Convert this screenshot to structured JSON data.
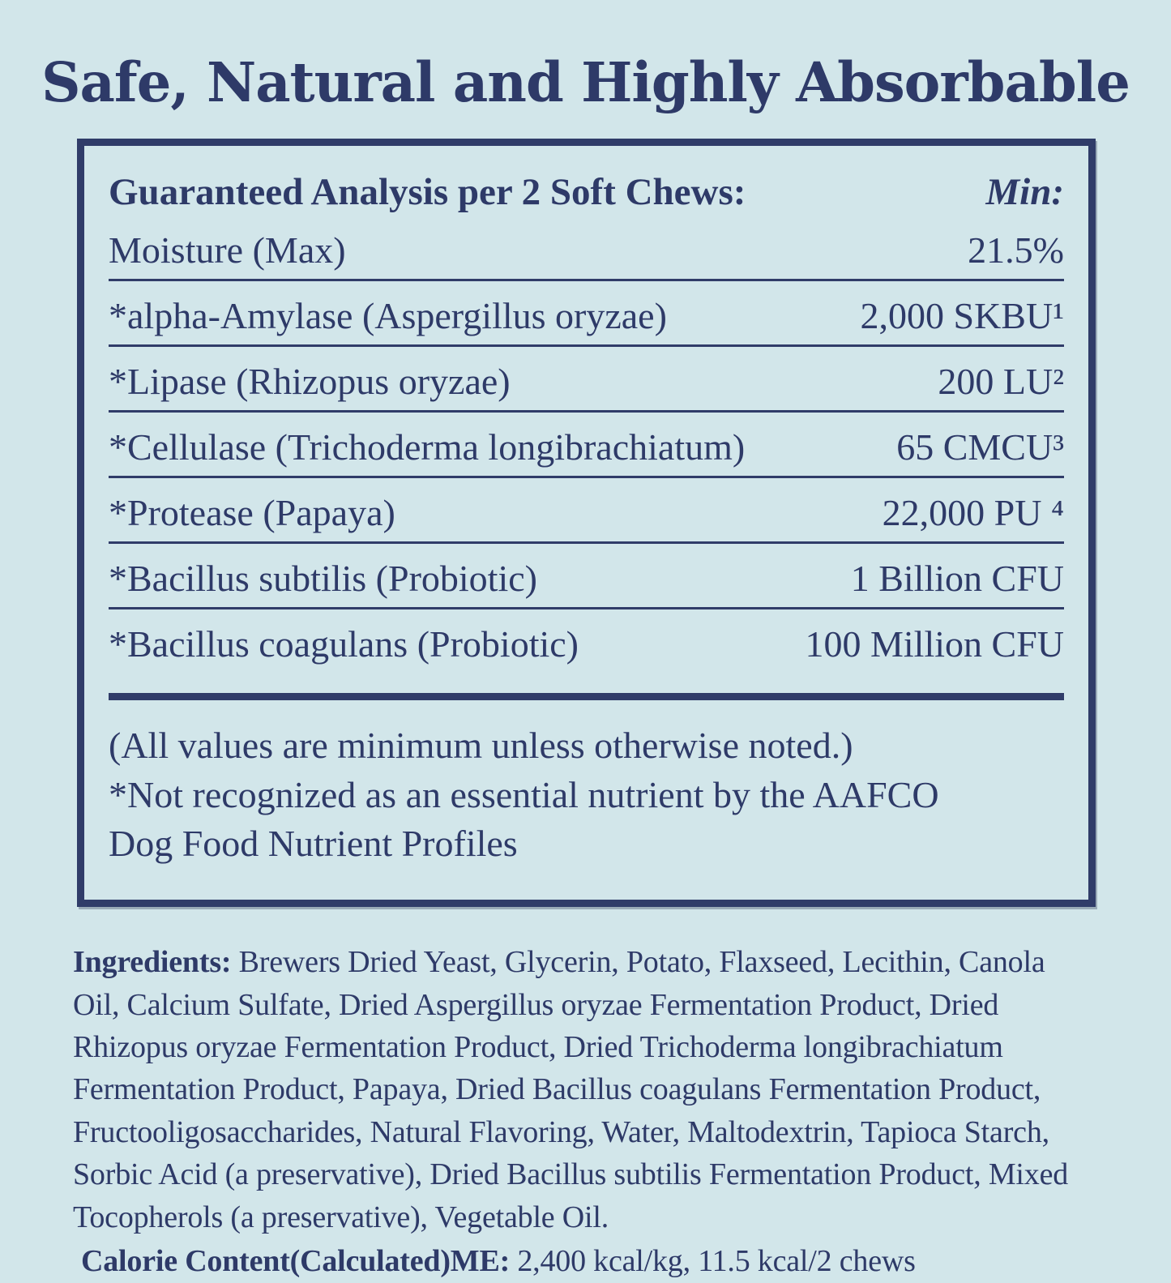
{
  "page": {
    "title": "Safe, Natural and Highly Absorbable"
  },
  "analysis_box": {
    "header": {
      "label": "Guaranteed Analysis per 2 Soft Chews:",
      "min_label": "Min:"
    },
    "rows": [
      {
        "name": "Moisture (Max)",
        "value": "21.5%"
      },
      {
        "name": "*alpha-Amylase (Aspergillus oryzae)",
        "value": "2,000 SKBU¹"
      },
      {
        "name": "*Lipase (Rhizopus oryzae)",
        "value": "200 LU²"
      },
      {
        "name": "*Cellulase (Trichoderma longibrachiatum)",
        "value": "65 CMCU³"
      },
      {
        "name": "*Protease (Papaya)",
        "value": "22,000 PU ⁴"
      },
      {
        "name": "*Bacillus subtilis (Probiotic)",
        "value": "1 Billion CFU"
      },
      {
        "name": "*Bacillus coagulans (Probiotic)",
        "value": "100 Million CFU"
      }
    ],
    "notes": [
      "(All values are minimum unless otherwise noted.)",
      "*Not recognized as an essential nutrient by the AAFCO\nDog Food Nutrient Profiles"
    ]
  },
  "ingredients": {
    "label": "Ingredients:",
    "text": " Brewers Dried Yeast, Glycerin, Potato, Flaxseed, Lecithin, Canola Oil, Calcium Sulfate, Dried Aspergillus oryzae Fermentation Product, Dried Rhizopus oryzae Fermentation Product, Dried Trichoderma longibrachiatum Fermentation Product, Papaya, Dried Bacillus coagulans Fermentation Product, Fructooligosaccharides, Natural Flavoring, Water, Maltodextrin, Tapioca Starch, Sorbic Acid (a preservative), Dried Bacillus subtilis Fermentation Product, Mixed Tocopherols (a preservative), Vegetable Oil."
  },
  "calories": {
    "label": "Calorie Content(Calculated)ME:",
    "value": " 2,400 kcal/kg, 11.5 kcal/2 chews"
  },
  "colors": {
    "background": "#d2e6ea",
    "navy": "#303c69"
  }
}
